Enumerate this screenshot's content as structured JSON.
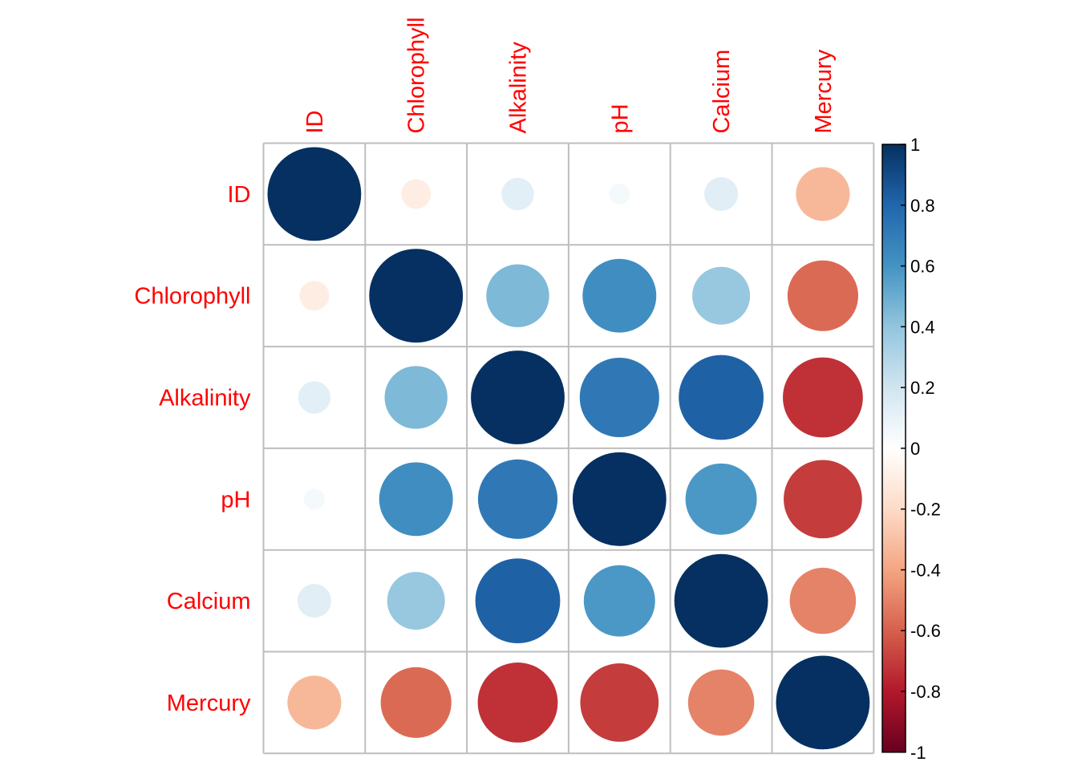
{
  "chart_data": {
    "type": "heatmap",
    "title": "",
    "variables": [
      "ID",
      "Chlorophyll",
      "Alkalinity",
      "pH",
      "Calcium",
      "Mercury"
    ],
    "matrix": [
      [
        1.0,
        -0.1,
        0.12,
        0.05,
        0.13,
        -0.33
      ],
      [
        -0.1,
        1.0,
        0.45,
        0.62,
        0.38,
        -0.57
      ],
      [
        0.12,
        0.45,
        1.0,
        0.72,
        0.82,
        -0.73
      ],
      [
        0.05,
        0.62,
        0.72,
        1.0,
        0.58,
        -0.7
      ],
      [
        0.13,
        0.38,
        0.82,
        0.58,
        1.0,
        -0.5
      ],
      [
        -0.33,
        -0.57,
        -0.73,
        -0.7,
        -0.5,
        1.0
      ]
    ],
    "colorbar": {
      "range": [
        -1,
        1
      ],
      "ticks": [
        "1",
        "0.8",
        "0.6",
        "0.4",
        "0.2",
        "0",
        "-0.2",
        "-0.4",
        "-0.6",
        "-0.8",
        "-1"
      ]
    },
    "colors": {
      "label": "#ff0000",
      "grid": "#bebebe",
      "scale": [
        "#67001f",
        "#b2182b",
        "#d6604d",
        "#f4a582",
        "#fddbc7",
        "#ffffff",
        "#d1e5f0",
        "#92c5de",
        "#4393c3",
        "#2166ac",
        "#053061"
      ]
    },
    "grid": true,
    "legend": "right"
  }
}
